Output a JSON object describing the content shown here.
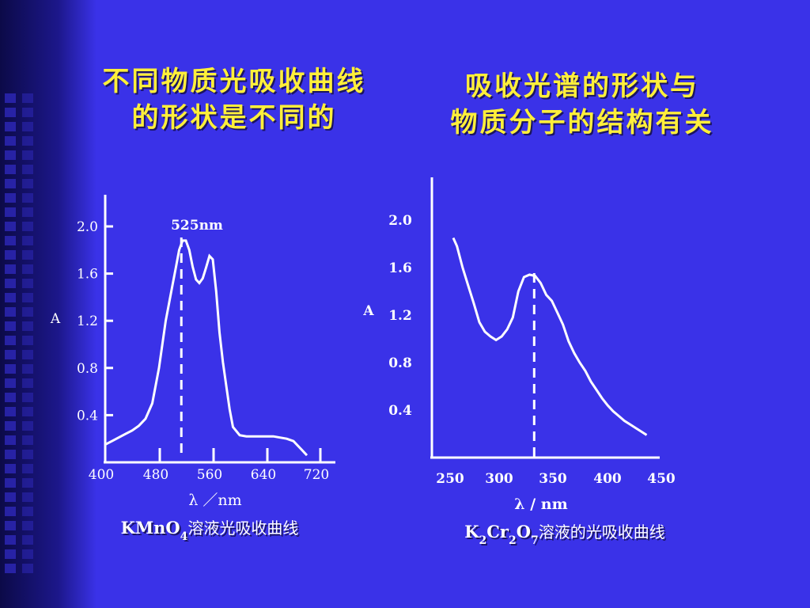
{
  "titles": {
    "left_line1": "不同物质光吸收曲线",
    "left_line2": "的形状是不同的",
    "right_line1": "吸收光谱的形状与",
    "right_line2": "物质分子的结构有关"
  },
  "colors": {
    "background": "#3a32e8",
    "title_text": "#ffef3a",
    "chart_ink": "#ffffff"
  },
  "chart_data": [
    {
      "type": "line",
      "title": "KMnO4溶液光吸收曲线",
      "caption_parts": {
        "main": "KMnO",
        "sub": "4",
        "rest": "溶液光吸收曲线"
      },
      "xlabel": "λ ／nm",
      "ylabel": "A",
      "xticks": [
        "400",
        "480",
        "560",
        "640",
        "720"
      ],
      "yticks": [
        "2.0",
        "1.6",
        "1.2",
        "0.8",
        "0.4"
      ],
      "ytick_values": [
        2.0,
        1.6,
        1.2,
        0.8,
        0.4
      ],
      "xlim": [
        400,
        720
      ],
      "ylim": [
        0,
        2.1
      ],
      "annotation": {
        "text": "525nm",
        "x": 525
      },
      "series": [
        {
          "x": [
            400,
            410,
            420,
            430,
            440,
            450,
            460,
            470,
            480,
            490,
            500,
            505,
            510,
            515,
            520,
            525,
            530,
            535,
            540,
            545,
            550,
            555,
            560,
            565,
            570,
            575,
            580,
            585,
            590,
            600,
            610,
            620,
            630,
            640,
            650,
            660,
            670,
            680,
            690,
            700
          ],
          "y": [
            0.15,
            0.18,
            0.21,
            0.24,
            0.27,
            0.31,
            0.37,
            0.5,
            0.8,
            1.2,
            1.5,
            1.65,
            1.8,
            1.88,
            1.88,
            1.8,
            1.66,
            1.55,
            1.52,
            1.56,
            1.65,
            1.75,
            1.72,
            1.45,
            1.1,
            0.85,
            0.65,
            0.45,
            0.3,
            0.23,
            0.22,
            0.22,
            0.22,
            0.22,
            0.22,
            0.21,
            0.2,
            0.18,
            0.12,
            0.06
          ]
        }
      ]
    },
    {
      "type": "line",
      "title": "K2Cr2O7溶液的光吸收曲线",
      "caption_parts": {
        "k": "K",
        "s1": "2",
        "cr": "Cr",
        "s2": "2",
        "o": "O",
        "s3": "7",
        "rest": "溶液的光吸收曲线"
      },
      "xlabel": "λ / nm",
      "ylabel": "A",
      "xticks": [
        "250",
        "300",
        "350",
        "400",
        "450"
      ],
      "yticks": [
        "2.0",
        "1.6",
        "1.2",
        "0.8",
        "0.4"
      ],
      "ytick_values": [
        2.0,
        1.6,
        1.2,
        0.8,
        0.4
      ],
      "xlim": [
        225,
        470
      ],
      "ylim": [
        0,
        2.2
      ],
      "peak_marker_x": 335,
      "series": [
        {
          "x": [
            248,
            252,
            258,
            264,
            270,
            276,
            282,
            288,
            294,
            300,
            306,
            312,
            318,
            324,
            330,
            336,
            342,
            348,
            354,
            360,
            366,
            372,
            378,
            384,
            390,
            396,
            402,
            408,
            414,
            420,
            426,
            432,
            438,
            444,
            450,
            456
          ],
          "y": [
            1.85,
            1.78,
            1.6,
            1.45,
            1.3,
            1.14,
            1.06,
            1.02,
            0.99,
            1.02,
            1.08,
            1.18,
            1.4,
            1.52,
            1.54,
            1.53,
            1.47,
            1.37,
            1.32,
            1.22,
            1.12,
            0.98,
            0.88,
            0.8,
            0.73,
            0.64,
            0.57,
            0.5,
            0.44,
            0.39,
            0.35,
            0.31,
            0.28,
            0.25,
            0.22,
            0.19
          ]
        }
      ]
    }
  ]
}
